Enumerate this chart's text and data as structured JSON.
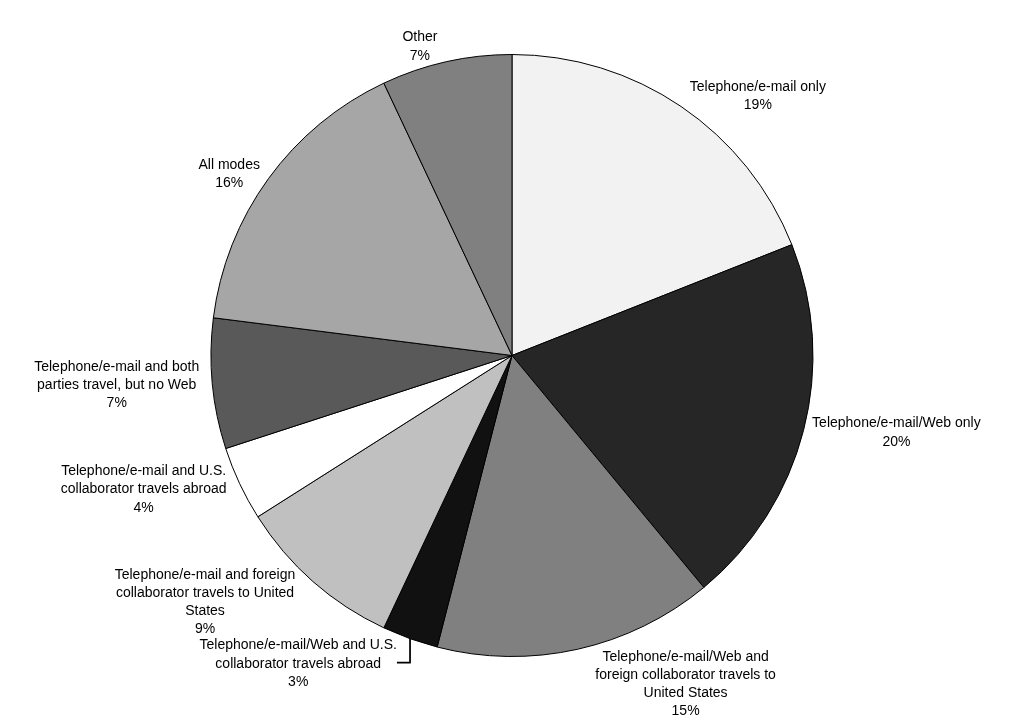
{
  "chart_data": {
    "type": "pie",
    "categories": [
      "Telephone/e-mail only",
      "Telephone/e-mail/Web only",
      "Telephone/e-mail/Web and foreign collaborator travels to United States",
      "Telephone/e-mail/Web and U.S. collaborator travels abroad",
      "Telephone/e-mail and foreign collaborator travels to United States",
      "Telephone/e-mail and U.S. collaborator travels abroad",
      "Telephone/e-mail and both parties travel, but no Web",
      "All modes",
      "Other"
    ],
    "values": [
      19,
      20,
      15,
      3,
      9,
      4,
      7,
      16,
      7
    ],
    "value_labels": [
      "19%",
      "20%",
      "15%",
      "3%",
      "9%",
      "4%",
      "7%",
      "16%",
      "7%"
    ],
    "colors": [
      "#f2f2f2",
      "#262626",
      "#808080",
      "#111111",
      "#c0c0c0",
      "#ffffff",
      "#595959",
      "#a6a6a6",
      "#808080"
    ],
    "legend": false
  }
}
